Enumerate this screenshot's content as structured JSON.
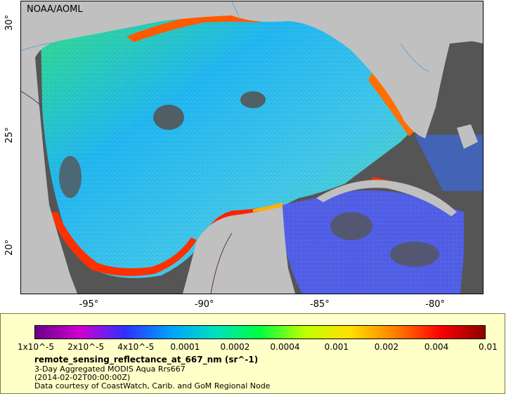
{
  "map": {
    "credit": "NOAA/AOML",
    "lon_range": [
      -98,
      -78
    ],
    "lat_range": [
      18,
      31
    ],
    "x_ticks": [
      {
        "value": -95,
        "label": "-95°"
      },
      {
        "value": -90,
        "label": "-90°"
      },
      {
        "value": -85,
        "label": "-85°"
      },
      {
        "value": -80,
        "label": "-80°"
      }
    ],
    "y_ticks": [
      {
        "value": 30,
        "label": "30°"
      },
      {
        "value": 25,
        "label": "25°"
      },
      {
        "value": 20,
        "label": "20°"
      }
    ],
    "colors": {
      "land": "#c0c0c0",
      "no_data": "#555555",
      "rivers": "#6aa0d8",
      "borders": "#6b2a5a"
    }
  },
  "legend": {
    "colorbar": {
      "scale": "log",
      "range": [
        1e-05,
        0.01
      ],
      "colors": [
        "#6a0088",
        "#d000d0",
        "#3030ff",
        "#00a0ff",
        "#00e0c0",
        "#00ff40",
        "#c0ff00",
        "#ffe000",
        "#ff8000",
        "#ff0000",
        "#8b0000"
      ],
      "tick_labels": [
        "1x10^-5",
        "2x10^-5",
        "4x10^-5",
        "0.0001",
        "0.0002",
        "0.0004",
        "0.001",
        "0.002",
        "0.004",
        "0.01"
      ]
    },
    "title": "remote_sensing_reflectance_at_667_nm (sr^-1)",
    "description": "3-Day Aggregated MODIS Aqua Rrs667",
    "time": "(2014-02-02T00:00:00Z)",
    "courtesy": "Data courtesy of CoastWatch, Carib. and GoM Regional Node"
  }
}
